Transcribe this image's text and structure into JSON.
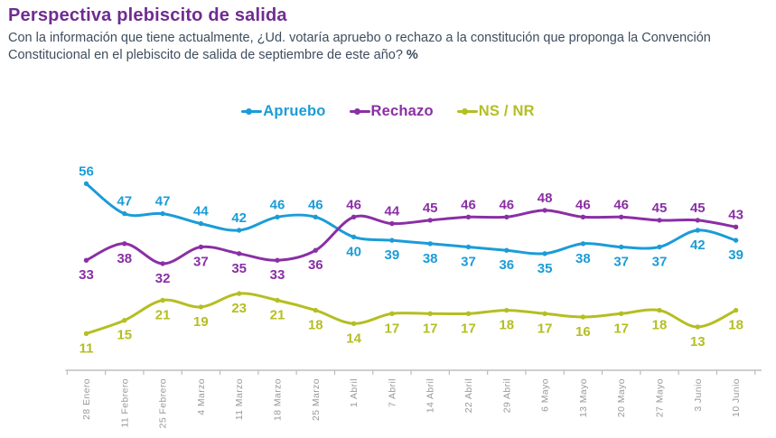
{
  "header": {
    "title": "Perspectiva plebiscito de salida",
    "question": "Con la información que tiene actualmente, ¿Ud. votaría apruebo o rechazo a la constitución que proponga la Convención Constitucional en el plebiscito de salida de septiembre de este año?",
    "question_unit": "%"
  },
  "colors": {
    "title": "#6F2C91",
    "question_text": "#3F4D5E",
    "axis_line": "#BDBDBD",
    "axis_labels": "#9A9A9A"
  },
  "legend": {
    "items": [
      {
        "label": "Apruebo",
        "color": "#1B9CD8"
      },
      {
        "label": "Rechazo",
        "color": "#8A2FA5"
      },
      {
        "label": "NS / NR",
        "color": "#B5BE22"
      }
    ]
  },
  "chart_data": {
    "type": "line",
    "title": "Perspectiva plebiscito de salida",
    "xlabel": "",
    "ylabel": "",
    "ylim": [
      0,
      60
    ],
    "grid": false,
    "legend_position": "top-center",
    "categories": [
      "28 Enero",
      "11 Febrero",
      "25 Febrero",
      "4 Marzo",
      "11 Marzo",
      "18 Marzo",
      "25 Marzo",
      "1 Abril",
      "7 Abril",
      "14 Abril",
      "22 Abril",
      "29 Abril",
      "6 Mayo",
      "13 Mayo",
      "20 Mayo",
      "27 Mayo",
      "3 Junio",
      "10 Junio"
    ],
    "series": [
      {
        "name": "Apruebo",
        "color": "#1B9CD8",
        "values": [
          56,
          47,
          47,
          44,
          42,
          46,
          46,
          40,
          39,
          38,
          37,
          36,
          35,
          38,
          37,
          37,
          42,
          39
        ],
        "label_sides": [
          "above",
          "above",
          "above",
          "above",
          "above",
          "above",
          "above",
          "below",
          "below",
          "below",
          "below",
          "below",
          "below",
          "below",
          "below",
          "below",
          "below",
          "below"
        ]
      },
      {
        "name": "Rechazo",
        "color": "#8A2FA5",
        "values": [
          33,
          38,
          32,
          37,
          35,
          33,
          36,
          46,
          44,
          45,
          46,
          46,
          48,
          46,
          46,
          45,
          45,
          43
        ],
        "label_sides": [
          "below",
          "below",
          "below",
          "below",
          "below",
          "below",
          "below",
          "above",
          "above",
          "above",
          "above",
          "above",
          "above",
          "above",
          "above",
          "above",
          "above",
          "above"
        ]
      },
      {
        "name": "NS / NR",
        "color": "#B5BE22",
        "values": [
          11,
          15,
          21,
          19,
          23,
          21,
          18,
          14,
          17,
          17,
          17,
          18,
          17,
          16,
          17,
          18,
          13,
          18
        ],
        "label_sides": [
          "below",
          "below",
          "below",
          "below",
          "below",
          "below",
          "below",
          "below",
          "below",
          "below",
          "below",
          "below",
          "below",
          "below",
          "below",
          "below",
          "below",
          "below"
        ]
      }
    ]
  }
}
